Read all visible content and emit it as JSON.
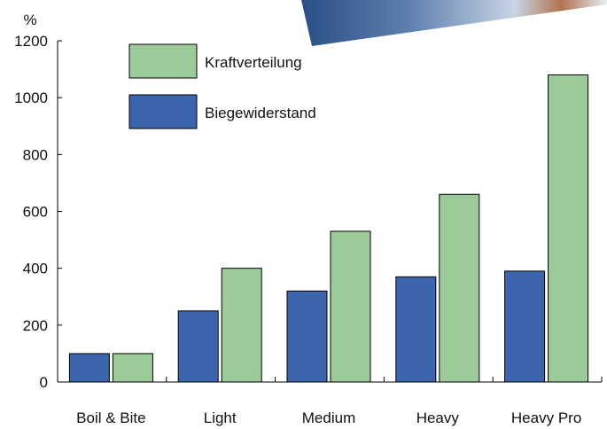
{
  "chart_data": {
    "type": "bar",
    "y_unit": "%",
    "categories": [
      "Boil & Bite",
      "Light",
      "Medium",
      "Heavy",
      "Heavy Pro"
    ],
    "series": [
      {
        "name": "Biegewiderstand",
        "values": [
          100,
          250,
          320,
          370,
          390
        ],
        "color": "#3d65ae"
      },
      {
        "name": "Kraftverteilung",
        "values": [
          100,
          400,
          530,
          660,
          1080
        ],
        "color": "#9ccb9a"
      }
    ],
    "ylim": [
      0,
      1200
    ],
    "yticks": [
      "0",
      "200",
      "400",
      "600",
      "800",
      "1000",
      "1200"
    ],
    "grid": false,
    "legend_placement": "top-left",
    "legend_order": [
      "Kraftverteilung",
      "Biegewiderstand"
    ]
  }
}
